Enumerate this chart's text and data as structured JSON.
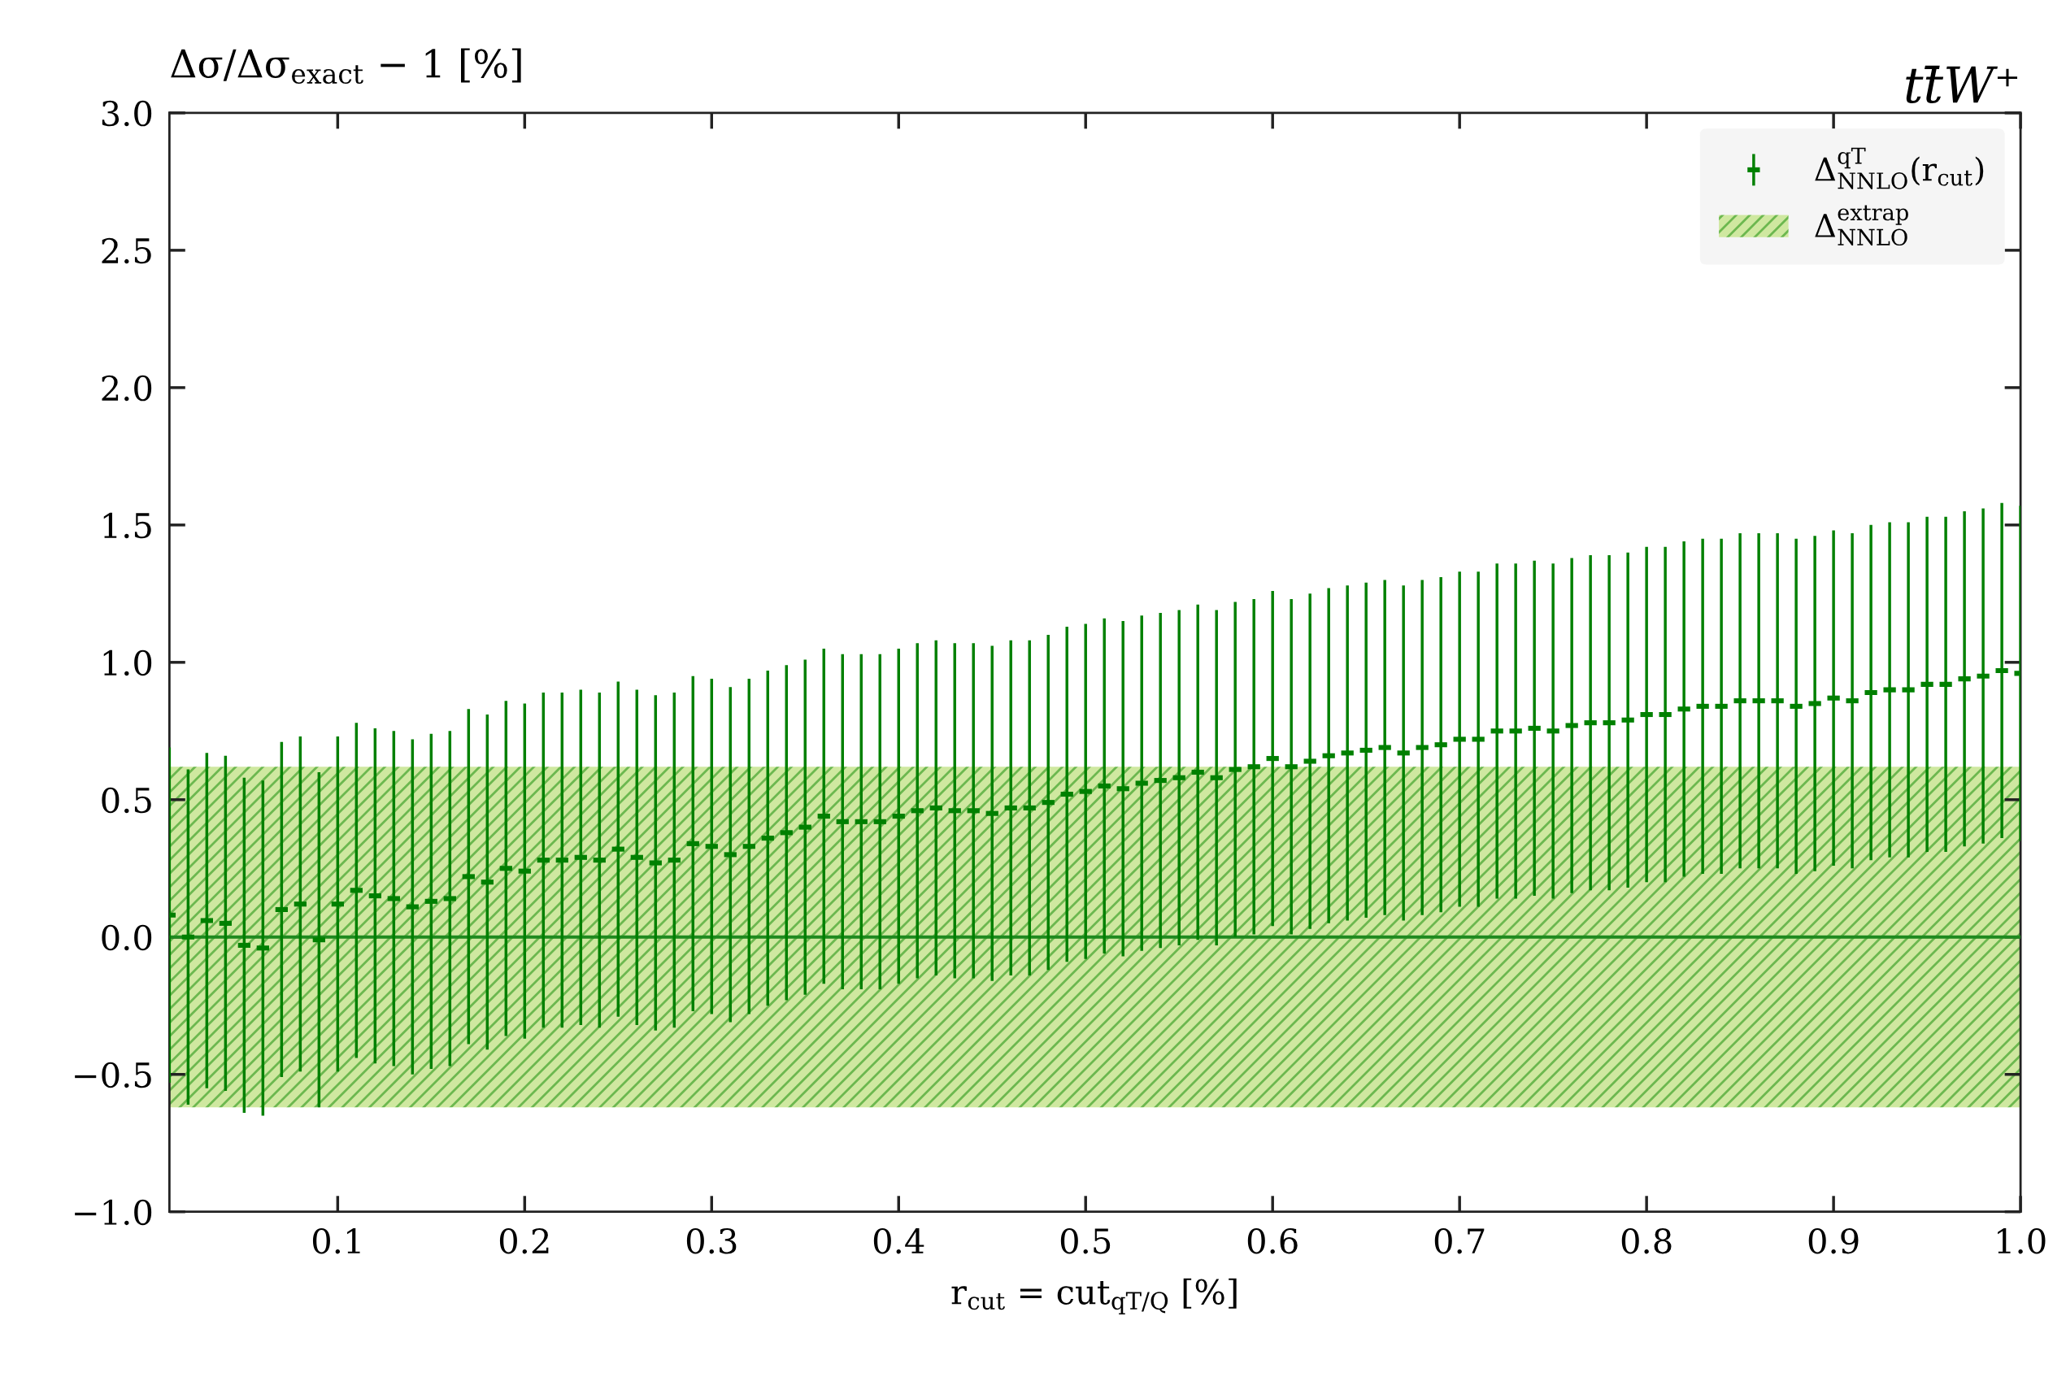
{
  "chart_data": {
    "type": "scatter",
    "title": "tt̄W⁺",
    "ylabel": "Δσ/Δσ$_{exact}$ − 1 [%]",
    "xlabel": "r$_{cut}$ = cut$_{qT/Q}$ [%]",
    "x": [
      0.01,
      0.02,
      0.03,
      0.04,
      0.05,
      0.06,
      0.07,
      0.08,
      0.09,
      0.1,
      0.11,
      0.12,
      0.13,
      0.14,
      0.15,
      0.16,
      0.17,
      0.18,
      0.19,
      0.2,
      0.21,
      0.22,
      0.23,
      0.24,
      0.25,
      0.26,
      0.27,
      0.28,
      0.29,
      0.3,
      0.31,
      0.32,
      0.33,
      0.34,
      0.35,
      0.36,
      0.37,
      0.38,
      0.39,
      0.4,
      0.41,
      0.42,
      0.43,
      0.44,
      0.45,
      0.46,
      0.47,
      0.48,
      0.49,
      0.5,
      0.51,
      0.52,
      0.53,
      0.54,
      0.55,
      0.56,
      0.57,
      0.58,
      0.59,
      0.6,
      0.61,
      0.62,
      0.63,
      0.64,
      0.65,
      0.66,
      0.67,
      0.68,
      0.69,
      0.7,
      0.71,
      0.72,
      0.73,
      0.74,
      0.75,
      0.76,
      0.77,
      0.78,
      0.79,
      0.8,
      0.81,
      0.82,
      0.83,
      0.84,
      0.85,
      0.86,
      0.87,
      0.88,
      0.89,
      0.9,
      0.91,
      0.92,
      0.93,
      0.94,
      0.95,
      0.96,
      0.97,
      0.98,
      0.99,
      1.0
    ],
    "series": [
      {
        "name": "Δ$^{qT}$$_{NNLO}$(r$_{cut}$)",
        "color": "#008000",
        "values": [
          0.08,
          0.0,
          0.06,
          0.05,
          -0.03,
          -0.04,
          0.1,
          0.12,
          -0.01,
          0.12,
          0.17,
          0.15,
          0.14,
          0.11,
          0.13,
          0.14,
          0.22,
          0.2,
          0.25,
          0.24,
          0.28,
          0.28,
          0.29,
          0.28,
          0.32,
          0.29,
          0.27,
          0.28,
          0.34,
          0.33,
          0.3,
          0.33,
          0.36,
          0.38,
          0.4,
          0.44,
          0.42,
          0.42,
          0.42,
          0.44,
          0.46,
          0.47,
          0.46,
          0.46,
          0.45,
          0.47,
          0.47,
          0.49,
          0.52,
          0.53,
          0.55,
          0.54,
          0.56,
          0.57,
          0.58,
          0.6,
          0.58,
          0.61,
          0.62,
          0.65,
          0.62,
          0.64,
          0.66,
          0.67,
          0.68,
          0.69,
          0.67,
          0.69,
          0.7,
          0.72,
          0.72,
          0.75,
          0.75,
          0.76,
          0.75,
          0.77,
          0.78,
          0.78,
          0.79,
          0.81,
          0.81,
          0.83,
          0.84,
          0.84,
          0.86,
          0.86,
          0.86,
          0.84,
          0.85,
          0.87,
          0.86,
          0.89,
          0.9,
          0.9,
          0.92,
          0.92,
          0.94,
          0.95,
          0.97,
          0.96
        ],
        "errors": [
          0.61,
          0.61,
          0.61,
          0.61,
          0.61,
          0.61,
          0.61,
          0.61,
          0.61,
          0.61,
          0.61,
          0.61,
          0.61,
          0.61,
          0.61,
          0.61,
          0.61,
          0.61,
          0.61,
          0.61,
          0.61,
          0.61,
          0.61,
          0.61,
          0.61,
          0.61,
          0.61,
          0.61,
          0.61,
          0.61,
          0.61,
          0.61,
          0.61,
          0.61,
          0.61,
          0.61,
          0.61,
          0.61,
          0.61,
          0.61,
          0.61,
          0.61,
          0.61,
          0.61,
          0.61,
          0.61,
          0.61,
          0.61,
          0.61,
          0.61,
          0.61,
          0.61,
          0.61,
          0.61,
          0.61,
          0.61,
          0.61,
          0.61,
          0.61,
          0.61,
          0.61,
          0.61,
          0.61,
          0.61,
          0.61,
          0.61,
          0.61,
          0.61,
          0.61,
          0.61,
          0.61,
          0.61,
          0.61,
          0.61,
          0.61,
          0.61,
          0.61,
          0.61,
          0.61,
          0.61,
          0.61,
          0.61,
          0.61,
          0.61,
          0.61,
          0.61,
          0.61,
          0.61,
          0.61,
          0.61,
          0.61,
          0.61,
          0.61,
          0.61,
          0.61,
          0.61,
          0.61,
          0.61,
          0.61,
          0.61
        ]
      }
    ],
    "bands": [
      {
        "axis": "y",
        "from": -0.62,
        "to": 0.62,
        "label": "Δ$^{extrap}$$_{NNLO}$",
        "color": "#cfe8a0"
      }
    ],
    "ref_lines": [
      {
        "axis": "y",
        "value": 0.0,
        "color": "#1f8a1f"
      }
    ],
    "xlim": [
      0.01,
      1.0
    ],
    "xticks": [
      0.1,
      0.2,
      0.3,
      0.4,
      0.5,
      0.6,
      0.7,
      0.8,
      0.9,
      {
        "value": 1,
        "label": "1.0"
      }
    ],
    "ylim": [
      -1.0,
      3.0
    ],
    "yticks": [
      {
        "value": -1.0,
        "label": "−1.0"
      },
      {
        "value": -0.5,
        "label": "−0.5"
      },
      {
        "value": 0,
        "label": "0.0"
      },
      0.5,
      {
        "value": 1,
        "label": "1.0"
      },
      1.5,
      {
        "value": 2,
        "label": "2.0"
      },
      2.5,
      {
        "value": 3,
        "label": "3.0"
      }
    ],
    "grid": false,
    "legend": "top right"
  }
}
